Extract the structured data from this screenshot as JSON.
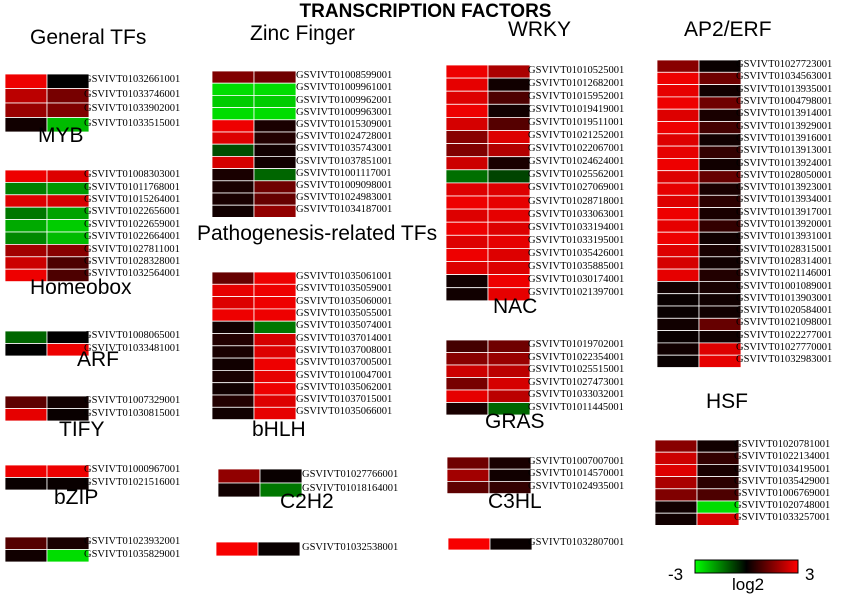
{
  "title": "TRANSCRIPTION FACTORS",
  "legend": {
    "min_label": "-3",
    "max_label": "3",
    "unit_label": "log2",
    "colors": {
      "low": "#00ff00",
      "mid": "#000000",
      "high": "#ff0000"
    }
  },
  "chart_data": [
    {
      "type": "heatmap",
      "title": "General TFs",
      "genes": [
        "GSVIVT01032661001",
        "GSVIVT01033746001",
        "GSVIVT01033902001",
        "GSVIVT01033515001"
      ],
      "values": [
        [
          2.8,
          0.0
        ],
        [
          2.2,
          1.4
        ],
        [
          1.8,
          1.5
        ],
        [
          0.2,
          -2.2
        ]
      ]
    },
    {
      "type": "heatmap",
      "title": "MYB",
      "genes": [
        "GSVIVT01008303001",
        "GSVIVT01011768001",
        "GSVIVT01015264001",
        "GSVIVT01022656001",
        "GSVIVT01022659001",
        "GSVIVT01022664001",
        "GSVIVT01027811001",
        "GSVIVT01028328001",
        "GSVIVT01032564001"
      ],
      "values": [
        [
          2.8,
          2.6
        ],
        [
          -1.5,
          -1.8
        ],
        [
          2.6,
          2.5
        ],
        [
          -1.4,
          -1.9
        ],
        [
          -2.0,
          -2.4
        ],
        [
          -1.6,
          -2.2
        ],
        [
          1.9,
          1.6
        ],
        [
          2.4,
          0.9
        ],
        [
          2.8,
          0.9
        ]
      ]
    },
    {
      "type": "heatmap",
      "title": "Homeobox",
      "genes": [
        "GSVIVT01008065001",
        "GSVIVT01033481001"
      ],
      "values": [
        [
          -1.2,
          0.0
        ],
        [
          0.0,
          2.8
        ]
      ]
    },
    {
      "type": "heatmap",
      "title": "ARF",
      "genes": [
        "GSVIVT01007329001",
        "GSVIVT01030815001"
      ],
      "values": [
        [
          1.1,
          0.2
        ],
        [
          2.7,
          0.1
        ]
      ]
    },
    {
      "type": "heatmap",
      "title": "TIFY",
      "genes": [
        "GSVIVT01000967001",
        "GSVIVT01021516001"
      ],
      "values": [
        [
          2.8,
          2.8
        ],
        [
          0.1,
          0.1
        ]
      ]
    },
    {
      "type": "heatmap",
      "title": "bZIP",
      "genes": [
        "GSVIVT01023932001",
        "GSVIVT01035829001"
      ],
      "values": [
        [
          1.0,
          0.3
        ],
        [
          0.2,
          -2.6
        ]
      ]
    },
    {
      "type": "heatmap",
      "title": "Zinc Finger",
      "genes": [
        "GSVIVT01008599001",
        "GSVIVT01009961001",
        "GSVIVT01009962001",
        "GSVIVT01009963001",
        "GSVIVT01015309001",
        "GSVIVT01024728001",
        "GSVIVT01035743001",
        "GSVIVT01037851001",
        "GSVIVT01001117001",
        "GSVIVT01009098001",
        "GSVIVT01024983001",
        "GSVIVT01034187001"
      ],
      "values": [
        [
          1.5,
          1.3
        ],
        [
          -2.6,
          -2.6
        ],
        [
          -2.4,
          -2.4
        ],
        [
          -2.6,
          -2.6
        ],
        [
          2.8,
          0.3
        ],
        [
          2.6,
          0.4
        ],
        [
          -0.9,
          0.2
        ],
        [
          2.5,
          0.2
        ],
        [
          0.3,
          -1.2
        ],
        [
          0.3,
          1.3
        ],
        [
          0.3,
          1.2
        ],
        [
          0.2,
          1.7
        ]
      ]
    },
    {
      "type": "heatmap",
      "title": "Pathogenesis-related TFs",
      "genes": [
        "GSVIVT01035061001",
        "GSVIVT01035059001",
        "GSVIVT01035060001",
        "GSVIVT01035055001",
        "GSVIVT01035074001",
        "GSVIVT01037014001",
        "GSVIVT01037008001",
        "GSVIVT01037005001",
        "GSVIVT01010047001",
        "GSVIVT01035062001",
        "GSVIVT01037015001",
        "GSVIVT01035066001"
      ],
      "values": [
        [
          1.2,
          2.8
        ],
        [
          2.7,
          2.8
        ],
        [
          2.6,
          2.8
        ],
        [
          2.8,
          2.8
        ],
        [
          0.2,
          -1.4
        ],
        [
          0.4,
          2.5
        ],
        [
          0.3,
          2.6
        ],
        [
          0.2,
          2.8
        ],
        [
          0.3,
          2.7
        ],
        [
          0.2,
          2.8
        ],
        [
          0.4,
          2.6
        ],
        [
          0.2,
          2.7
        ]
      ]
    },
    {
      "type": "heatmap",
      "title": "bHLH",
      "genes": [
        "GSVIVT01027766001",
        "GSVIVT01018164001"
      ],
      "values": [
        [
          1.7,
          0.1
        ],
        [
          0.2,
          -1.4
        ]
      ]
    },
    {
      "type": "heatmap",
      "title": "C2H2",
      "genes": [
        "GSVIVT01032538001"
      ],
      "values": [
        [
          2.9,
          0.1
        ]
      ]
    },
    {
      "type": "heatmap",
      "title": "WRKY",
      "genes": [
        "GSVIVT01010525001",
        "GSVIVT01012682001",
        "GSVIVT01015952001",
        "GSVIVT01019419001",
        "GSVIVT01019511001",
        "GSVIVT01021252001",
        "GSVIVT01022067001",
        "GSVIVT01024624001",
        "GSVIVT01025562001",
        "GSVIVT01027069001",
        "GSVIVT01028718001",
        "GSVIVT01033063001",
        "GSVIVT01033194001",
        "GSVIVT01033195001",
        "GSVIVT01035426001",
        "GSVIVT01035885001",
        "GSVIVT01030174001",
        "GSVIVT01021397001"
      ],
      "values": [
        [
          2.8,
          2.0
        ],
        [
          2.7,
          0.2
        ],
        [
          2.6,
          0.9
        ],
        [
          2.8,
          0.2
        ],
        [
          2.5,
          1.0
        ],
        [
          1.6,
          2.6
        ],
        [
          1.5,
          2.1
        ],
        [
          2.4,
          0.3
        ],
        [
          -1.3,
          -0.8
        ],
        [
          2.6,
          2.6
        ],
        [
          2.8,
          2.7
        ],
        [
          2.6,
          2.7
        ],
        [
          2.8,
          2.6
        ],
        [
          2.6,
          2.7
        ],
        [
          2.8,
          2.6
        ],
        [
          2.6,
          2.6
        ],
        [
          0.2,
          2.8
        ],
        [
          0.2,
          2.7
        ]
      ]
    },
    {
      "type": "heatmap",
      "title": "NAC",
      "genes": [
        "GSVIVT01019702001",
        "GSVIVT01022354001",
        "GSVIVT01025515001",
        "GSVIVT01027473001",
        "GSVIVT01033032001",
        "GSVIVT01011445001"
      ],
      "values": [
        [
          0.8,
          1.3
        ],
        [
          1.6,
          1.8
        ],
        [
          2.4,
          2.2
        ],
        [
          1.4,
          2.5
        ],
        [
          2.7,
          2.2
        ],
        [
          0.3,
          -1.2
        ]
      ]
    },
    {
      "type": "heatmap",
      "title": "GRAS",
      "genes": [
        "GSVIVT01007007001",
        "GSVIVT01014570001",
        "GSVIVT01024935001"
      ],
      "values": [
        [
          1.3,
          0.3
        ],
        [
          1.9,
          0.2
        ],
        [
          1.1,
          0.6
        ]
      ]
    },
    {
      "type": "heatmap",
      "title": "C3HL",
      "genes": [
        "GSVIVT01032807001"
      ],
      "values": [
        [
          2.9,
          0.1
        ]
      ]
    },
    {
      "type": "heatmap",
      "title": "AP2/ERF",
      "genes": [
        "GSVIVT01027723001",
        "GSVIVT01034563001",
        "GSVIVT01013935001",
        "GSVIVT01004798001",
        "GSVIVT01013914001",
        "GSVIVT01013929001",
        "GSVIVT01013916001",
        "GSVIVT01013913001",
        "GSVIVT01013924001",
        "GSVIVT01028050001",
        "GSVIVT01013923001",
        "GSVIVT01013934001",
        "GSVIVT01013917001",
        "GSVIVT01013920001",
        "GSVIVT01013931001",
        "GSVIVT01028315001",
        "GSVIVT01028314001",
        "GSVIVT01021146001",
        "GSVIVT01001089001",
        "GSVIVT01013903001",
        "GSVIVT01020584001",
        "GSVIVT01021098001",
        "GSVIVT01022277001",
        "GSVIVT01027770001",
        "GSVIVT01032983001"
      ],
      "values": [
        [
          1.6,
          0.1
        ],
        [
          2.8,
          1.3
        ],
        [
          2.7,
          0.2
        ],
        [
          2.8,
          1.3
        ],
        [
          2.6,
          0.3
        ],
        [
          2.8,
          0.8
        ],
        [
          2.6,
          0.2
        ],
        [
          2.7,
          0.6
        ],
        [
          2.8,
          0.2
        ],
        [
          2.6,
          1.2
        ],
        [
          2.7,
          0.3
        ],
        [
          2.6,
          0.5
        ],
        [
          2.8,
          0.3
        ],
        [
          2.7,
          0.6
        ],
        [
          2.8,
          0.2
        ],
        [
          2.6,
          0.3
        ],
        [
          2.5,
          0.2
        ],
        [
          2.7,
          0.4
        ],
        [
          0.2,
          0.3
        ],
        [
          0.1,
          0.2
        ],
        [
          0.1,
          0.2
        ],
        [
          0.2,
          1.2
        ],
        [
          0.1,
          0.2
        ],
        [
          0.2,
          2.6
        ],
        [
          0.1,
          2.7
        ]
      ]
    },
    {
      "type": "heatmap",
      "title": "HSF",
      "genes": [
        "GSVIVT01020781001",
        "GSVIVT01022134001",
        "GSVIVT01034195001",
        "GSVIVT01035429001",
        "GSVIVT01006769001",
        "GSVIVT01020748001",
        "GSVIVT01033257001"
      ],
      "values": [
        [
          1.6,
          0.2
        ],
        [
          2.4,
          0.6
        ],
        [
          2.6,
          0.3
        ],
        [
          2.0,
          0.5
        ],
        [
          1.5,
          0.9
        ],
        [
          0.2,
          -2.6
        ],
        [
          0.2,
          2.5
        ]
      ]
    }
  ]
}
